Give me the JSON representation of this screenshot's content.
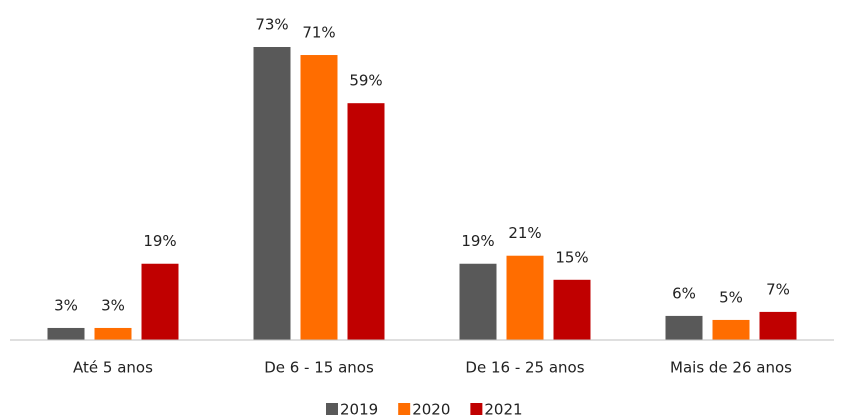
{
  "chart_data": {
    "type": "bar",
    "categories": [
      "Até 5 anos",
      "De 6 - 15 anos",
      "De 16 - 25 anos",
      "Mais de 26 anos"
    ],
    "series": [
      {
        "name": "2019",
        "color": "#595959",
        "values": [
          3,
          73,
          19,
          6
        ],
        "value_labels": [
          "3%",
          "73%",
          "19%",
          "6%"
        ]
      },
      {
        "name": "2020",
        "color": "#ff6d00",
        "values": [
          3,
          71,
          21,
          5
        ],
        "value_labels": [
          "3%",
          "71%",
          "21%",
          "5%"
        ]
      },
      {
        "name": "2021",
        "color": "#c00000",
        "values": [
          19,
          59,
          15,
          7
        ],
        "value_labels": [
          "19%",
          "59%",
          "15%",
          "7%"
        ]
      }
    ]
  }
}
